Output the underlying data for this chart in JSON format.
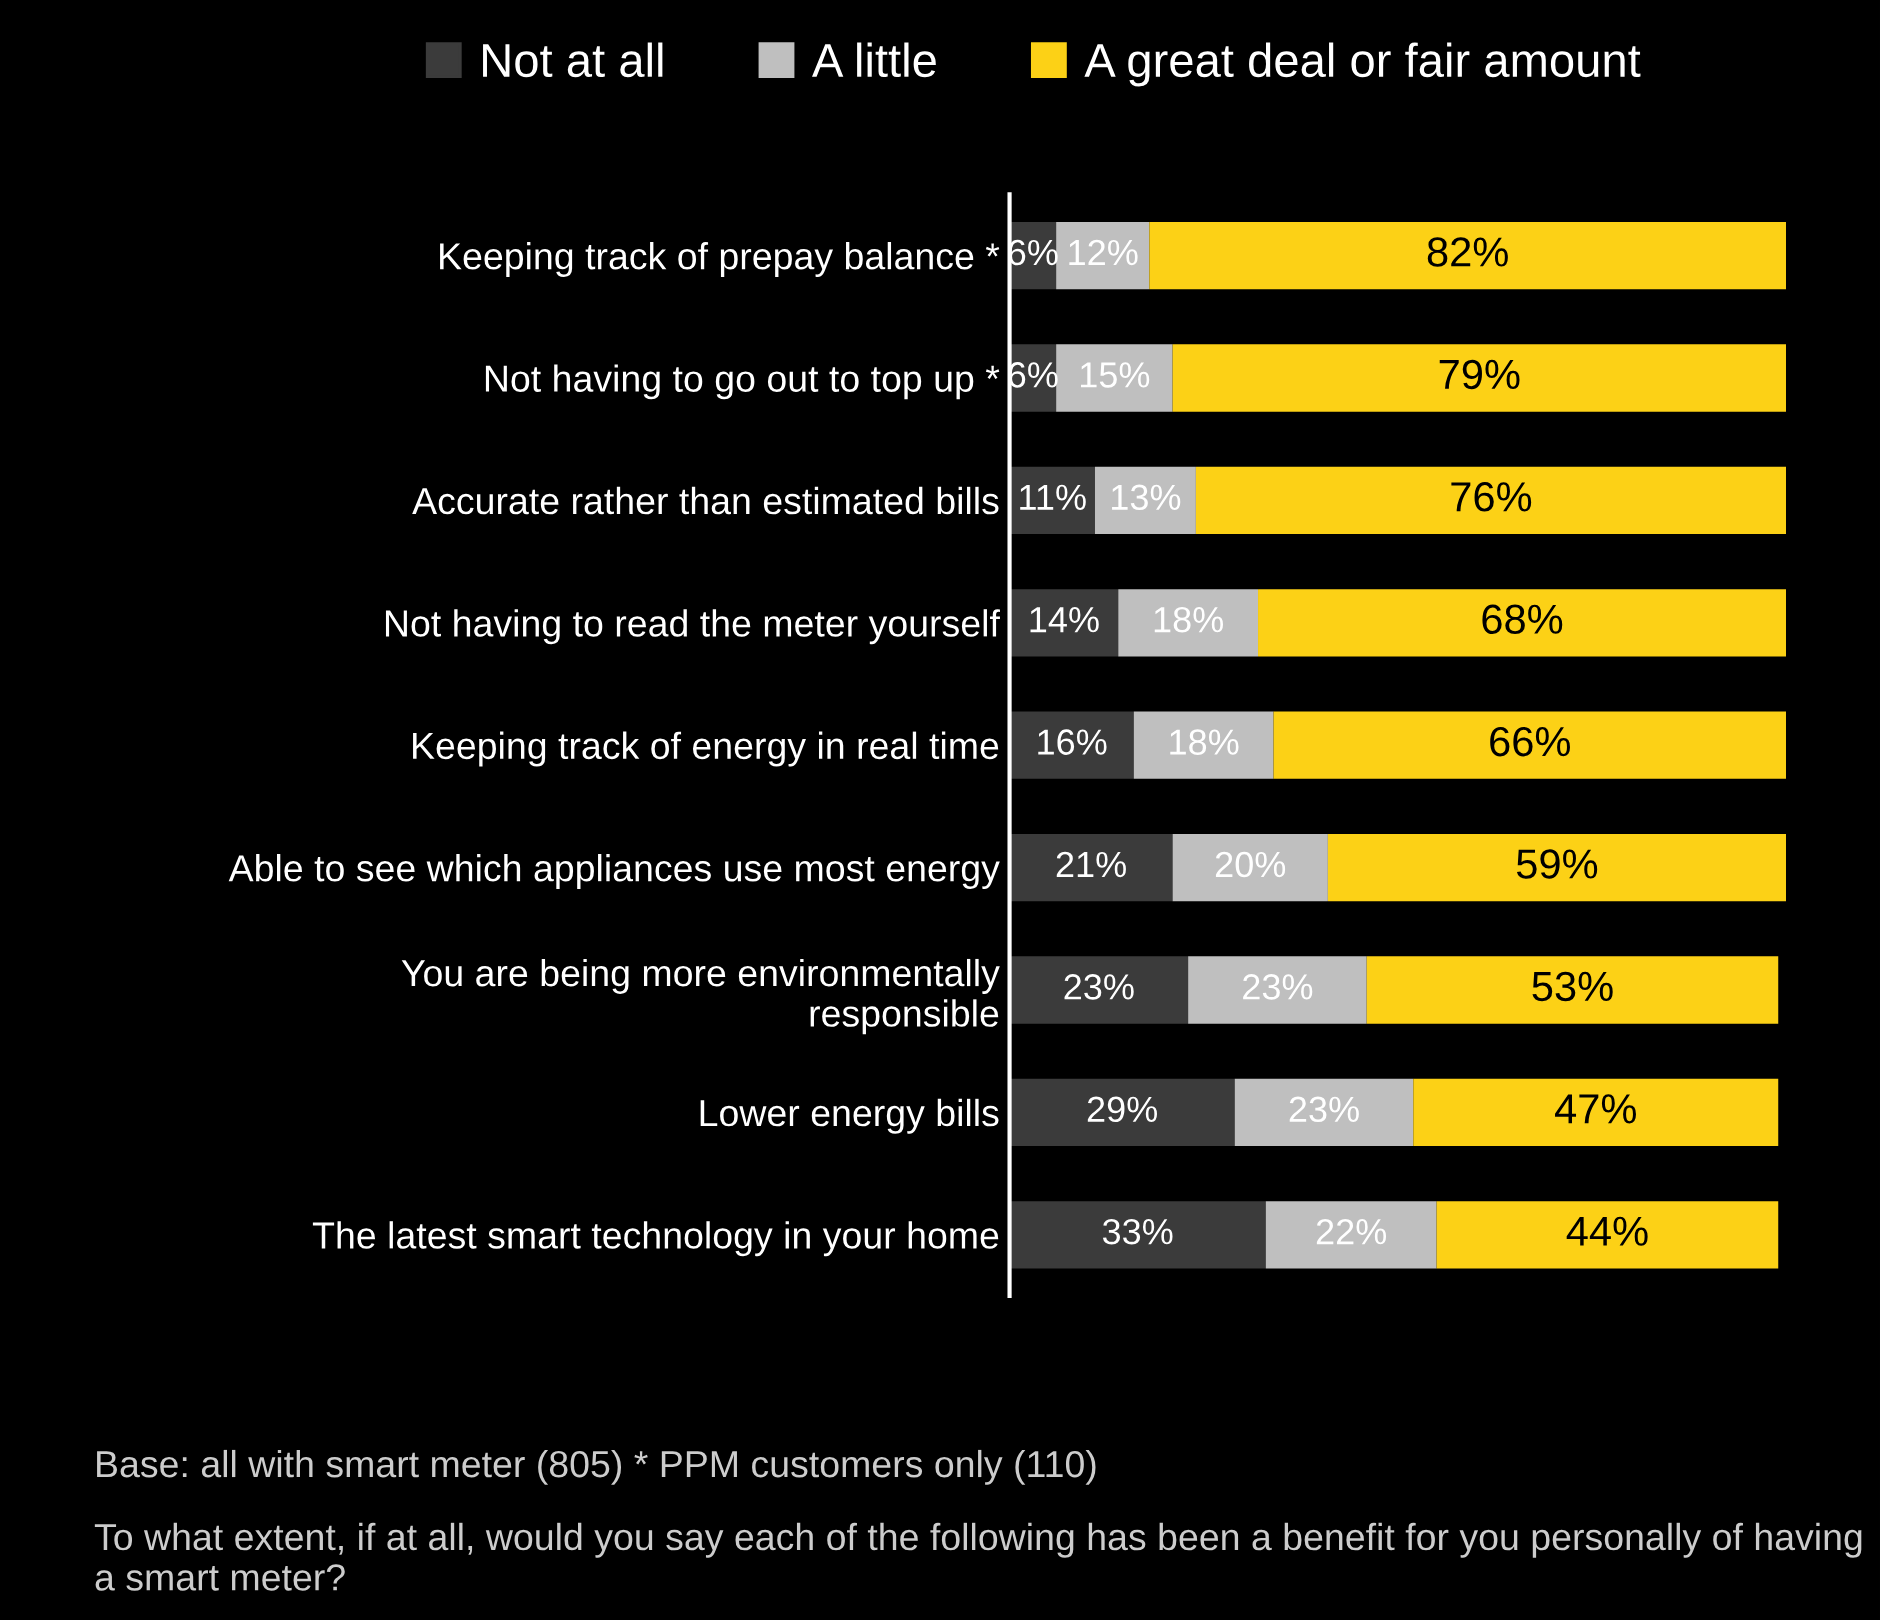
{
  "chart_data": {
    "type": "bar",
    "orientation": "horizontal",
    "stacked": true,
    "legend": "top",
    "grid": false,
    "categories": [
      "Keeping track of prepay balance *",
      "Not having to go out to top up *",
      "Accurate rather than estimated bills",
      "Not having to read the meter yourself",
      "Keeping track of energy in real time",
      "Able to see which appliances use most energy",
      "You are being more environmentally\nresponsible",
      "Lower energy bills",
      "The latest smart technology in your home"
    ],
    "series": [
      {
        "name": "Not at all",
        "color": "#3b3b3b",
        "values": [
          6,
          6,
          11,
          14,
          16,
          21,
          23,
          29,
          33
        ],
        "value_labels": [
          "6%",
          "6%",
          "11%",
          "14%",
          "16%",
          "21%",
          "23%",
          "29%",
          "33%"
        ]
      },
      {
        "name": "A little",
        "color": "#bfbfbf",
        "values": [
          12,
          15,
          13,
          18,
          18,
          20,
          23,
          23,
          22
        ],
        "value_labels": [
          "12%",
          "15%",
          "13%",
          "18%",
          "18%",
          "20%",
          "23%",
          "23%",
          "22%"
        ]
      },
      {
        "name": "A great deal or fair amount",
        "color": "#fcd116",
        "values": [
          82,
          79,
          76,
          68,
          66,
          59,
          53,
          47,
          44
        ],
        "value_labels": [
          "82%",
          "79%",
          "76%",
          "68%",
          "66%",
          "59%",
          "53%",
          "47%",
          "44%"
        ]
      }
    ],
    "annotations": [
      "Base: all with smart meter (805) * PPM customers only (110)",
      "To what extent, if at all, would you say each of the following has been a benefit for you personally of having a smart meter?"
    ]
  }
}
